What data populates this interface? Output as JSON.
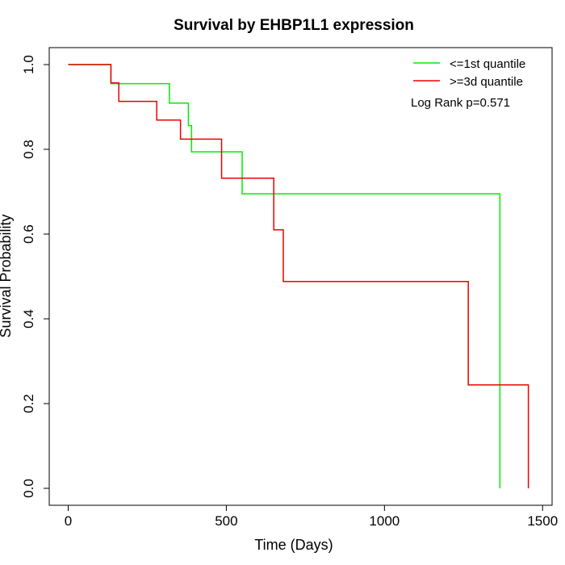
{
  "chart_data": {
    "type": "line",
    "title": "Survival by EHBP1L1 expression",
    "xlabel": "Time (Days)",
    "ylabel": "Survival Probability",
    "xlim": [
      -60,
      1530
    ],
    "ylim": [
      -0.04,
      1.04
    ],
    "xticks": [
      0,
      500,
      1000,
      1500
    ],
    "xtick_labels": [
      "0",
      "500",
      "1000",
      "1500"
    ],
    "yticks": [
      0.0,
      0.2,
      0.4,
      0.6,
      0.8,
      1.0
    ],
    "ytick_labels": [
      "0.0",
      "0.2",
      "0.4",
      "0.6",
      "0.8",
      "1.0"
    ],
    "grid": false,
    "legend_position": "top-right",
    "annotation": "Log Rank p=0.571",
    "series": [
      {
        "name": "<=1st quantile",
        "color": "#00ee00",
        "step": true,
        "x": [
          0,
          135,
          320,
          380,
          390,
          550,
          1365,
          1365
        ],
        "y": [
          1.0,
          0.955,
          0.909,
          0.856,
          0.794,
          0.695,
          0.695,
          0.0
        ]
      },
      {
        "name": ">=3d quantile",
        "color": "#ee0000",
        "step": true,
        "x": [
          0,
          135,
          160,
          280,
          355,
          485,
          650,
          680,
          1265,
          1455,
          1455
        ],
        "y": [
          1.0,
          0.957,
          0.913,
          0.869,
          0.824,
          0.732,
          0.61,
          0.488,
          0.244,
          0.244,
          0.0
        ]
      }
    ]
  }
}
